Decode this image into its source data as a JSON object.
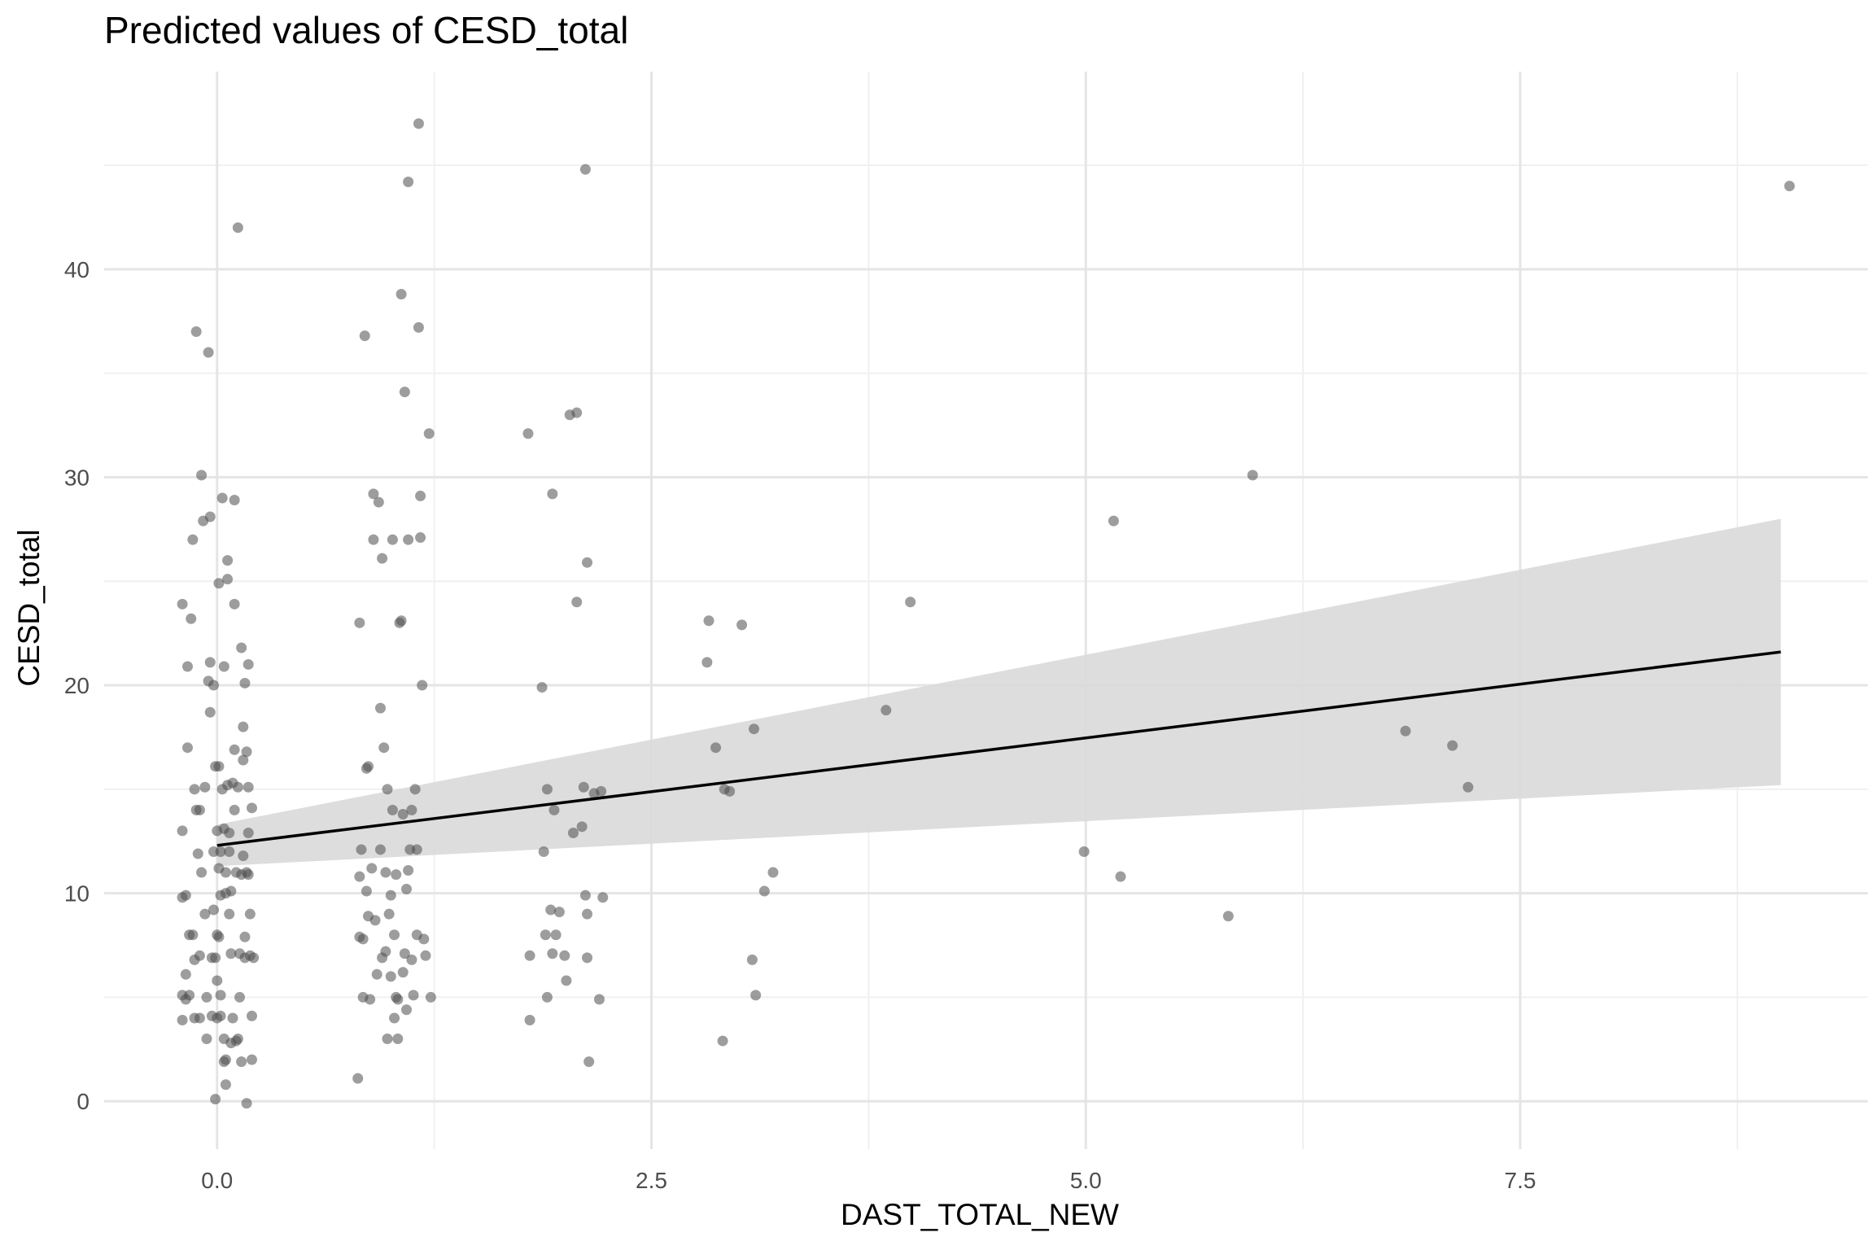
{
  "chart_data": {
    "type": "scatter",
    "title": "Predicted values of CESD_total",
    "xlabel": "DAST_TOTAL_NEW",
    "ylabel": "CESD_total",
    "xlim": [
      -0.65,
      9.5
    ],
    "ylim": [
      -2.3,
      49.5
    ],
    "x_ticks": [
      0.0,
      2.5,
      5.0,
      7.5
    ],
    "x_tick_labels": [
      "0.0",
      "2.5",
      "5.0",
      "7.5"
    ],
    "y_ticks": [
      0,
      10,
      20,
      30,
      40
    ],
    "y_tick_labels": [
      "0",
      "10",
      "20",
      "30",
      "40"
    ],
    "grid": true,
    "colors": {
      "point": "#4d4d4d",
      "fit_line": "#000000",
      "ribbon": "#d9d9d9",
      "grid_major": "#e5e5e5",
      "grid_minor": "#f0f0f0"
    },
    "fit_line": {
      "x": [
        0,
        9
      ],
      "y": [
        12.3,
        21.6
      ]
    },
    "confidence_band": {
      "x": [
        0,
        9
      ],
      "lower": [
        11.3,
        15.2
      ],
      "upper": [
        13.3,
        28.0
      ]
    },
    "points": [
      [
        -0.2,
        3.9
      ],
      [
        -0.2,
        5.1
      ],
      [
        -0.2,
        9.8
      ],
      [
        -0.2,
        13.0
      ],
      [
        -0.2,
        23.9
      ],
      [
        -0.18,
        4.9
      ],
      [
        -0.18,
        6.1
      ],
      [
        -0.18,
        9.9
      ],
      [
        -0.17,
        17.0
      ],
      [
        -0.17,
        20.9
      ],
      [
        -0.16,
        5.1
      ],
      [
        -0.16,
        8.0
      ],
      [
        -0.15,
        23.2
      ],
      [
        -0.14,
        27.0
      ],
      [
        -0.14,
        8.0
      ],
      [
        -0.13,
        4.0
      ],
      [
        -0.13,
        6.8
      ],
      [
        -0.13,
        15.0
      ],
      [
        -0.12,
        14.0
      ],
      [
        -0.12,
        37.0
      ],
      [
        -0.11,
        11.9
      ],
      [
        -0.1,
        7.0
      ],
      [
        -0.1,
        4.0
      ],
      [
        -0.1,
        14.0
      ],
      [
        -0.09,
        11.0
      ],
      [
        -0.09,
        30.1
      ],
      [
        -0.08,
        27.9
      ],
      [
        -0.07,
        15.1
      ],
      [
        -0.07,
        9.0
      ],
      [
        -0.06,
        3.0
      ],
      [
        -0.06,
        5.0
      ],
      [
        -0.05,
        20.2
      ],
      [
        -0.05,
        36.0
      ],
      [
        -0.04,
        21.1
      ],
      [
        -0.04,
        28.1
      ],
      [
        -0.04,
        18.7
      ],
      [
        -0.03,
        6.9
      ],
      [
        -0.03,
        4.1
      ],
      [
        -0.02,
        9.2
      ],
      [
        -0.02,
        12.0
      ],
      [
        -0.02,
        20.0
      ],
      [
        -0.01,
        6.9
      ],
      [
        -0.01,
        0.1
      ],
      [
        -0.01,
        16.1
      ],
      [
        0.0,
        8.0
      ],
      [
        0.0,
        13.0
      ],
      [
        0.0,
        4.0
      ],
      [
        0.0,
        5.8
      ],
      [
        0.01,
        11.2
      ],
      [
        0.01,
        16.1
      ],
      [
        0.01,
        24.9
      ],
      [
        0.01,
        7.9
      ],
      [
        0.02,
        12.0
      ],
      [
        0.02,
        5.1
      ],
      [
        0.02,
        4.1
      ],
      [
        0.02,
        9.9
      ],
      [
        0.03,
        29.0
      ],
      [
        0.03,
        15.0
      ],
      [
        0.04,
        13.1
      ],
      [
        0.04,
        20.9
      ],
      [
        0.04,
        3.0
      ],
      [
        0.04,
        1.9
      ],
      [
        0.05,
        10.0
      ],
      [
        0.05,
        11.0
      ],
      [
        0.05,
        2.0
      ],
      [
        0.05,
        0.8
      ],
      [
        0.06,
        15.2
      ],
      [
        0.06,
        26.0
      ],
      [
        0.06,
        25.1
      ],
      [
        0.07,
        12.9
      ],
      [
        0.07,
        9.0
      ],
      [
        0.07,
        12.0
      ],
      [
        0.08,
        10.1
      ],
      [
        0.08,
        7.1
      ],
      [
        0.08,
        2.8
      ],
      [
        0.09,
        15.3
      ],
      [
        0.09,
        4.0
      ],
      [
        0.1,
        23.9
      ],
      [
        0.1,
        14.0
      ],
      [
        0.1,
        28.9
      ],
      [
        0.1,
        16.9
      ],
      [
        0.11,
        11.0
      ],
      [
        0.11,
        2.9
      ],
      [
        0.12,
        15.1
      ],
      [
        0.12,
        3.0
      ],
      [
        0.12,
        42.0
      ],
      [
        0.13,
        7.1
      ],
      [
        0.13,
        5.0
      ],
      [
        0.14,
        10.9
      ],
      [
        0.14,
        1.9
      ],
      [
        0.14,
        21.8
      ],
      [
        0.15,
        18.0
      ],
      [
        0.15,
        11.8
      ],
      [
        0.15,
        16.4
      ],
      [
        0.16,
        20.1
      ],
      [
        0.16,
        7.9
      ],
      [
        0.16,
        6.9
      ],
      [
        0.17,
        16.8
      ],
      [
        0.17,
        11.0
      ],
      [
        0.17,
        -0.1
      ],
      [
        0.18,
        21.0
      ],
      [
        0.18,
        15.1
      ],
      [
        0.18,
        10.9
      ],
      [
        0.18,
        12.9
      ],
      [
        0.19,
        9.0
      ],
      [
        0.19,
        7.0
      ],
      [
        0.2,
        14.1
      ],
      [
        0.2,
        4.1
      ],
      [
        0.2,
        2.0
      ],
      [
        0.21,
        6.9
      ],
      [
        0.81,
        1.1
      ],
      [
        0.82,
        23.0
      ],
      [
        0.82,
        10.8
      ],
      [
        0.82,
        7.9
      ],
      [
        0.83,
        12.1
      ],
      [
        0.84,
        7.8
      ],
      [
        0.84,
        5.0
      ],
      [
        0.85,
        36.8
      ],
      [
        0.86,
        16.0
      ],
      [
        0.86,
        10.1
      ],
      [
        0.87,
        16.1
      ],
      [
        0.87,
        8.9
      ],
      [
        0.88,
        4.9
      ],
      [
        0.89,
        11.2
      ],
      [
        0.9,
        27.0
      ],
      [
        0.9,
        29.2
      ],
      [
        0.91,
        8.7
      ],
      [
        0.92,
        6.1
      ],
      [
        0.93,
        28.8
      ],
      [
        0.94,
        18.9
      ],
      [
        0.94,
        12.1
      ],
      [
        0.95,
        6.9
      ],
      [
        0.95,
        26.1
      ],
      [
        0.96,
        17.0
      ],
      [
        0.97,
        11.0
      ],
      [
        0.97,
        7.2
      ],
      [
        0.98,
        3.0
      ],
      [
        0.98,
        15.0
      ],
      [
        0.99,
        9.0
      ],
      [
        1.0,
        6.0
      ],
      [
        1.0,
        9.9
      ],
      [
        1.01,
        14.0
      ],
      [
        1.01,
        27.0
      ],
      [
        1.02,
        8.0
      ],
      [
        1.02,
        4.0
      ],
      [
        1.03,
        5.0
      ],
      [
        1.03,
        10.9
      ],
      [
        1.04,
        3.0
      ],
      [
        1.04,
        4.9
      ],
      [
        1.05,
        23.0
      ],
      [
        1.06,
        23.1
      ],
      [
        1.06,
        38.8
      ],
      [
        1.07,
        6.2
      ],
      [
        1.07,
        13.8
      ],
      [
        1.08,
        34.1
      ],
      [
        1.08,
        7.1
      ],
      [
        1.09,
        10.2
      ],
      [
        1.09,
        4.4
      ],
      [
        1.1,
        11.1
      ],
      [
        1.1,
        44.2
      ],
      [
        1.1,
        27.0
      ],
      [
        1.11,
        12.1
      ],
      [
        1.12,
        14.0
      ],
      [
        1.12,
        6.8
      ],
      [
        1.13,
        5.1
      ],
      [
        1.14,
        15.0
      ],
      [
        1.15,
        8.0
      ],
      [
        1.15,
        12.1
      ],
      [
        1.16,
        47.0
      ],
      [
        1.16,
        37.2
      ],
      [
        1.17,
        29.1
      ],
      [
        1.17,
        27.1
      ],
      [
        1.18,
        20.0
      ],
      [
        1.19,
        7.8
      ],
      [
        1.2,
        7.0
      ],
      [
        1.22,
        32.1
      ],
      [
        1.23,
        5.0
      ],
      [
        1.79,
        32.1
      ],
      [
        1.8,
        7.0
      ],
      [
        1.8,
        3.9
      ],
      [
        1.87,
        19.9
      ],
      [
        1.88,
        12.0
      ],
      [
        1.89,
        8.0
      ],
      [
        1.9,
        15.0
      ],
      [
        1.9,
        5.0
      ],
      [
        1.92,
        9.2
      ],
      [
        1.93,
        29.2
      ],
      [
        1.93,
        7.1
      ],
      [
        1.94,
        14.0
      ],
      [
        1.95,
        8.0
      ],
      [
        1.97,
        9.1
      ],
      [
        2.0,
        7.0
      ],
      [
        2.01,
        5.8
      ],
      [
        2.03,
        33.0
      ],
      [
        2.05,
        12.9
      ],
      [
        2.07,
        33.1
      ],
      [
        2.07,
        24.0
      ],
      [
        2.1,
        13.2
      ],
      [
        2.11,
        15.1
      ],
      [
        2.12,
        44.8
      ],
      [
        2.12,
        9.9
      ],
      [
        2.13,
        25.9
      ],
      [
        2.13,
        9.0
      ],
      [
        2.13,
        6.9
      ],
      [
        2.14,
        1.9
      ],
      [
        2.17,
        14.8
      ],
      [
        2.2,
        4.9
      ],
      [
        2.21,
        14.9
      ],
      [
        2.22,
        9.8
      ],
      [
        2.82,
        21.1
      ],
      [
        2.83,
        23.1
      ],
      [
        2.87,
        17.0
      ],
      [
        2.91,
        2.9
      ],
      [
        2.92,
        15.0
      ],
      [
        2.95,
        14.9
      ],
      [
        3.02,
        22.9
      ],
      [
        3.08,
        6.8
      ],
      [
        3.09,
        17.9
      ],
      [
        3.1,
        5.1
      ],
      [
        3.15,
        10.1
      ],
      [
        3.2,
        11.0
      ],
      [
        3.85,
        18.8
      ],
      [
        3.99,
        24.0
      ],
      [
        4.99,
        12.0
      ],
      [
        5.16,
        27.9
      ],
      [
        5.2,
        10.8
      ],
      [
        5.82,
        8.9
      ],
      [
        5.96,
        30.1
      ],
      [
        6.84,
        17.8
      ],
      [
        7.11,
        17.1
      ],
      [
        7.2,
        15.1
      ],
      [
        9.05,
        44.0
      ]
    ]
  }
}
